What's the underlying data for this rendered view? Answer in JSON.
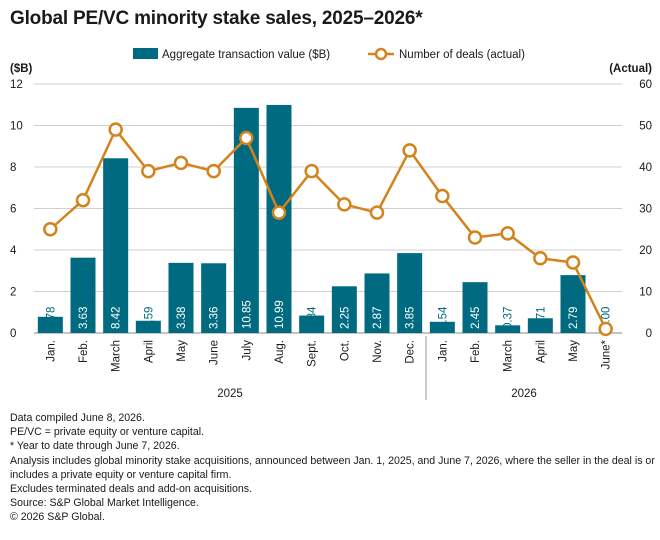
{
  "title": "Global PE/VC minority stake sales, 2025–2026*",
  "legend": {
    "bar_label": "Aggregate transaction value ($B)",
    "line_label": "Number of deals (actual)"
  },
  "axis": {
    "left_unit": "($B)",
    "right_unit": "(Actual)",
    "left_ticks": [
      "0",
      "2",
      "4",
      "6",
      "8",
      "10",
      "12"
    ],
    "right_ticks": [
      "0",
      "10",
      "20",
      "30",
      "40",
      "50",
      "60"
    ]
  },
  "colors": {
    "bar": "#006a80",
    "line": "#d4831c",
    "grid": "#cfcfcf",
    "divider": "#9a9a9a"
  },
  "chart_data": {
    "type": "bar",
    "categories": [
      "Jan.",
      "Feb.",
      "March",
      "April",
      "May",
      "June",
      "July",
      "Aug.",
      "Sept.",
      "Oct.",
      "Nov.",
      "Dec.",
      "Jan.",
      "Feb.",
      "March",
      "April",
      "May",
      "June*"
    ],
    "groups": [
      {
        "label": "2025",
        "count": 12
      },
      {
        "label": "2026",
        "count": 6
      }
    ],
    "series": [
      {
        "name": "Aggregate transaction value ($B)",
        "type": "bar",
        "axis": "left",
        "values": [
          0.78,
          3.63,
          8.42,
          0.59,
          3.38,
          3.36,
          10.85,
          10.99,
          0.84,
          2.25,
          2.87,
          3.85,
          0.54,
          2.45,
          0.37,
          0.71,
          2.79,
          0.0
        ],
        "labels": [
          "0.78",
          "3.63",
          "8.42",
          "0.59",
          "3.38",
          "3.36",
          "10.85",
          "10.99",
          "0.84",
          "2.25",
          "2.87",
          "3.85",
          "0.54",
          "2.45",
          "0.37",
          "0.71",
          "2.79",
          "0.00"
        ]
      },
      {
        "name": "Number of deals (actual)",
        "type": "line",
        "axis": "right",
        "values": [
          25,
          32,
          49,
          39,
          41,
          39,
          47,
          29,
          39,
          31,
          29,
          44,
          33,
          23,
          24,
          18,
          17,
          1
        ]
      }
    ],
    "ylim_left": [
      0,
      12
    ],
    "ylim_right": [
      0,
      60
    ],
    "legend_position": "top"
  },
  "notes": [
    "Data compiled June 8, 2026.",
    "PE/VC = private equity or venture capital.",
    "* Year to date through June 7, 2026.",
    "Analysis includes global minority stake acquisitions, announced between Jan. 1, 2025, and June 7, 2026, where the seller in the deal is or includes a private equity or venture capital firm.",
    "Excludes terminated deals and add-on acquisitions.",
    "Source: S&P Global Market Intelligence.",
    "© 2026 S&P Global."
  ]
}
